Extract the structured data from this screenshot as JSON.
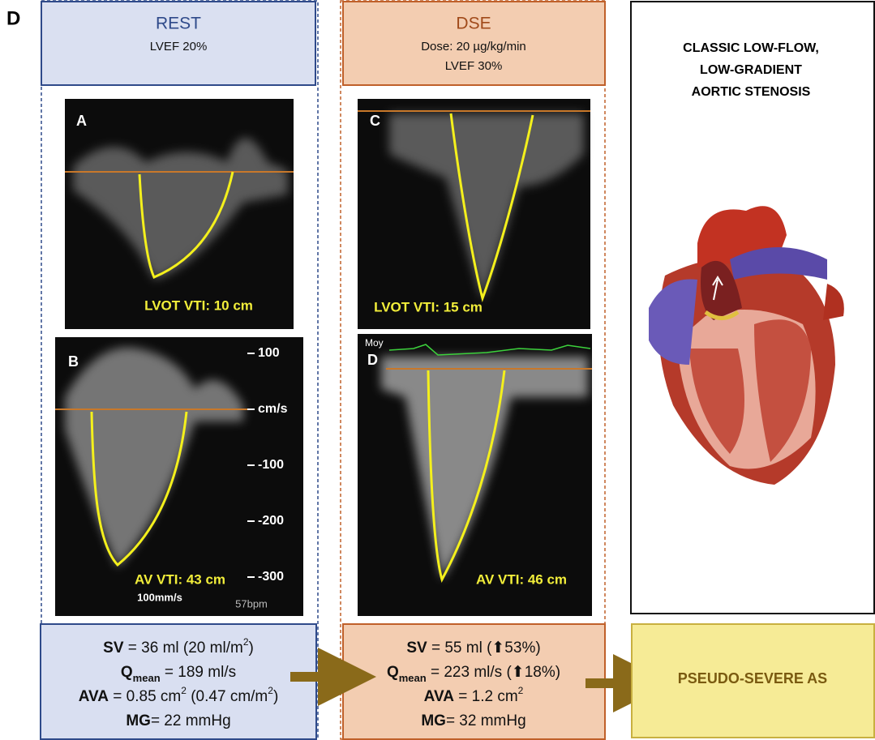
{
  "figure_label": "D",
  "rest": {
    "title": "REST",
    "subtitle": "LVEF 20%",
    "panel_a": {
      "letter": "A",
      "label": "LVOT VTI: 10 cm"
    },
    "panel_b": {
      "letter": "B",
      "label": "AV VTI:   43 cm",
      "scale": [
        "100",
        "cm/s",
        "-100",
        "-200",
        "-300"
      ],
      "speed": "100mm/s",
      "rate": "57bpm"
    },
    "summary": [
      [
        {
          "b": "SV"
        },
        " = 36 ml (20 ml/m",
        {
          "sup": "2"
        },
        ")"
      ],
      [
        {
          "b": "Q"
        },
        {
          "bsub": "mean"
        },
        " = 189 ml/s"
      ],
      [
        {
          "b": "AVA"
        },
        " = 0.85 cm",
        {
          "sup": "2"
        },
        " (0.47 cm/m",
        {
          "sup": "2"
        },
        ")"
      ],
      [
        {
          "b": "MG"
        },
        "= 22 mmHg"
      ]
    ]
  },
  "dse": {
    "title": "DSE",
    "dose": "Dose: 20 µg/kg/min",
    "subtitle": "LVEF 30%",
    "panel_c": {
      "letter": "C",
      "label": "LVOT VTI:  15 cm"
    },
    "panel_d": {
      "letter": "D",
      "trace": "Moy",
      "label": "AV VTI:  46 cm"
    },
    "summary": [
      [
        {
          "b": "SV"
        },
        " = 55 ml (⬆53%)"
      ],
      [
        {
          "b": "Q"
        },
        {
          "bsub": "mean"
        },
        " = 223 ml/s (⬆18%)"
      ],
      [
        {
          "b": "AVA"
        },
        " = 1.2 cm",
        {
          "sup": "2"
        }
      ],
      [
        {
          "b": "MG"
        },
        "= 32 mmHg"
      ]
    ]
  },
  "diagnosis": {
    "title": [
      "CLASSIC LOW-FLOW,",
      "LOW-GRADIENT",
      "AORTIC STENOSIS"
    ]
  },
  "result": "PSEUDO-SEVERE AS"
}
